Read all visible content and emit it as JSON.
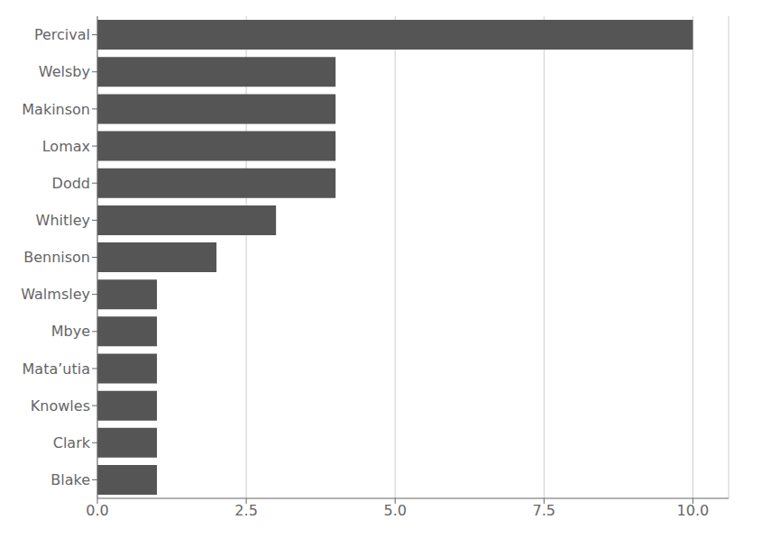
{
  "chart_data": {
    "type": "bar",
    "orientation": "horizontal",
    "categories": [
      "Percival",
      "Welsby",
      "Makinson",
      "Lomax",
      "Dodd",
      "Whitley",
      "Bennison",
      "Walmsley",
      "Mbye",
      "Mata’utia",
      "Knowles",
      "Clark",
      "Blake"
    ],
    "values": [
      10,
      4,
      4,
      4,
      4,
      3,
      2,
      1,
      1,
      1,
      1,
      1,
      1
    ],
    "color": "#555555",
    "xlim": [
      0,
      10.6
    ],
    "xticks": [
      {
        "value": 0.0,
        "label": "0.0"
      },
      {
        "value": 2.5,
        "label": "2.5"
      },
      {
        "value": 5.0,
        "label": "5.0"
      },
      {
        "value": 7.5,
        "label": "7.5"
      },
      {
        "value": 10.0,
        "label": "10.0"
      }
    ],
    "grid": true
  }
}
